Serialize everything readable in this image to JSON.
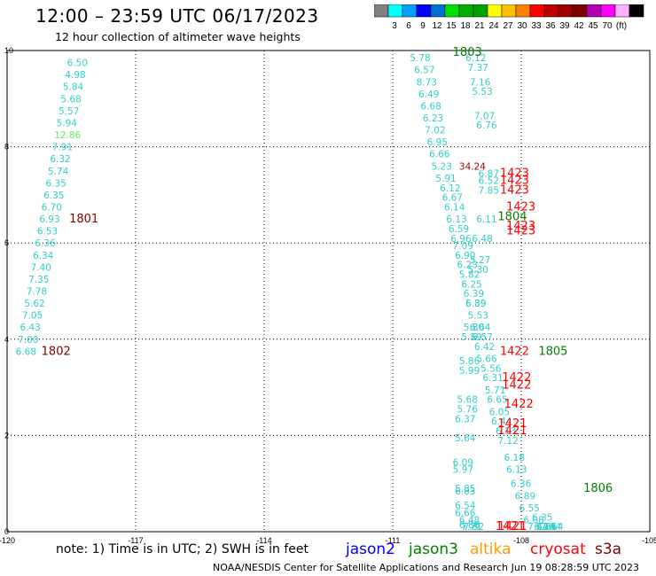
{
  "header": {
    "title": "12:00 – 23:59 UTC 06/17/2023",
    "subtitle": "12 hour collection of altimeter wave heights"
  },
  "colorbar": {
    "colors": [
      "#808080",
      "#00ffff",
      "#00a0ff",
      "#0000ff",
      "#0070d0",
      "#00e000",
      "#00b000",
      "#00a000",
      "#ffff00",
      "#ffc000",
      "#ff8000",
      "#ff0000",
      "#c00000",
      "#a00000",
      "#800000",
      "#b000b0",
      "#ff00ff",
      "#ffb0ff",
      "#000000"
    ],
    "labels": [
      "3",
      "6",
      "9",
      "12",
      "15",
      "18",
      "21",
      "24",
      "27",
      "30",
      "33",
      "36",
      "39",
      "42",
      "45",
      "70",
      "(ft)"
    ]
  },
  "note": "note: 1) Time is in UTC; 2) SWH is in feet",
  "legend": [
    {
      "name": "jason2",
      "color": "#0000ff"
    },
    {
      "name": "jason3",
      "color": "#008000"
    },
    {
      "name": "altika",
      "color": "#ff9900"
    },
    {
      "name": "cryosat",
      "color": "#ff0000"
    },
    {
      "name": "s3a",
      "color": "#800000"
    }
  ],
  "footer": "NOAA/NESDIS Center for Satellite Applications and Research   Jun 19 08:28:59 UTC 2023",
  "chart_data": {
    "type": "scatter",
    "title": "12:00 – 23:59 UTC 06/17/2023",
    "xlim": [
      -120,
      -105
    ],
    "ylim": [
      0,
      10
    ],
    "x_ticks": [
      "-120",
      "-117",
      "-114",
      "-111",
      "-108",
      "-105"
    ],
    "y_ticks": [
      "0",
      "2",
      "4",
      "6",
      "8",
      "10"
    ],
    "grid": true,
    "series": [
      {
        "name": "swh",
        "labels": [
          {
            "text": "6.50",
            "x": -118.6,
            "y": 9.75,
            "color": "#33cccc"
          },
          {
            "text": "4.98",
            "x": -118.65,
            "y": 9.5,
            "color": "#33cccc"
          },
          {
            "text": "5.84",
            "x": -118.7,
            "y": 9.25,
            "color": "#33cccc"
          },
          {
            "text": "5.68",
            "x": -118.75,
            "y": 9.0,
            "color": "#33cccc"
          },
          {
            "text": "5.57",
            "x": -118.8,
            "y": 8.75,
            "color": "#33cccc"
          },
          {
            "text": "5.94",
            "x": -118.85,
            "y": 8.5,
            "color": "#33cccc"
          },
          {
            "text": "12.86",
            "x": -118.9,
            "y": 8.25,
            "color": "#66ee66"
          },
          {
            "text": "7.91",
            "x": -118.95,
            "y": 8.0,
            "color": "#33cccc"
          },
          {
            "text": "6.32",
            "x": -119.0,
            "y": 7.75,
            "color": "#33cccc"
          },
          {
            "text": "5.74",
            "x": -119.05,
            "y": 7.5,
            "color": "#33cccc"
          },
          {
            "text": "6.35",
            "x": -119.1,
            "y": 7.25,
            "color": "#33cccc"
          },
          {
            "text": "6.35",
            "x": -119.15,
            "y": 7.0,
            "color": "#33cccc"
          },
          {
            "text": "6.70",
            "x": -119.2,
            "y": 6.75,
            "color": "#33cccc"
          },
          {
            "text": "6.93",
            "x": -119.25,
            "y": 6.5,
            "color": "#33cccc"
          },
          {
            "text": "6.53",
            "x": -119.3,
            "y": 6.25,
            "color": "#33cccc"
          },
          {
            "text": "6.36",
            "x": -119.35,
            "y": 6.0,
            "color": "#33cccc"
          },
          {
            "text": "6.34",
            "x": -119.4,
            "y": 5.75,
            "color": "#33cccc"
          },
          {
            "text": "7.40",
            "x": -119.45,
            "y": 5.5,
            "color": "#33cccc"
          },
          {
            "text": "7.35",
            "x": -119.5,
            "y": 5.25,
            "color": "#33cccc"
          },
          {
            "text": "7.78",
            "x": -119.55,
            "y": 5.0,
            "color": "#33cccc"
          },
          {
            "text": "5.62",
            "x": -119.6,
            "y": 4.75,
            "color": "#33cccc"
          },
          {
            "text": "7.05",
            "x": -119.65,
            "y": 4.5,
            "color": "#33cccc"
          },
          {
            "text": "6.43",
            "x": -119.7,
            "y": 4.25,
            "color": "#33cccc"
          },
          {
            "text": "7.00",
            "x": -119.75,
            "y": 4.0,
            "color": "#33cccc"
          },
          {
            "text": "6.68",
            "x": -119.8,
            "y": 3.75,
            "color": "#33cccc"
          },
          {
            "text": "1801",
            "x": -118.55,
            "y": 6.5,
            "color": "#800000"
          },
          {
            "text": "1802",
            "x": -119.2,
            "y": 3.75,
            "color": "#800000"
          },
          {
            "text": "5.78",
            "x": -110.6,
            "y": 9.85,
            "color": "#33cccc"
          },
          {
            "text": "6.57",
            "x": -110.5,
            "y": 9.6,
            "color": "#33cccc"
          },
          {
            "text": "8.73",
            "x": -110.45,
            "y": 9.35,
            "color": "#33cccc"
          },
          {
            "text": "6.49",
            "x": -110.4,
            "y": 9.1,
            "color": "#33cccc"
          },
          {
            "text": "6.68",
            "x": -110.35,
            "y": 8.85,
            "color": "#33cccc"
          },
          {
            "text": "6.23",
            "x": -110.3,
            "y": 8.6,
            "color": "#33cccc"
          },
          {
            "text": "7.02",
            "x": -110.25,
            "y": 8.35,
            "color": "#33cccc"
          },
          {
            "text": "6.95",
            "x": -110.2,
            "y": 8.1,
            "color": "#33cccc"
          },
          {
            "text": "6.66",
            "x": -110.15,
            "y": 7.85,
            "color": "#33cccc"
          },
          {
            "text": "5.23",
            "x": -110.1,
            "y": 7.6,
            "color": "#33cccc"
          },
          {
            "text": "5.91",
            "x": -110.0,
            "y": 7.35,
            "color": "#33cccc"
          },
          {
            "text": "6.12",
            "x": -109.9,
            "y": 7.15,
            "color": "#33cccc"
          },
          {
            "text": "6.67",
            "x": -109.85,
            "y": 6.95,
            "color": "#33cccc"
          },
          {
            "text": "6.14",
            "x": -109.8,
            "y": 6.75,
            "color": "#33cccc"
          },
          {
            "text": "6.13",
            "x": -109.75,
            "y": 6.5,
            "color": "#33cccc"
          },
          {
            "text": "6.59",
            "x": -109.7,
            "y": 6.3,
            "color": "#33cccc"
          },
          {
            "text": "6.96",
            "x": -109.65,
            "y": 6.1,
            "color": "#33cccc"
          },
          {
            "text": "7.09",
            "x": -109.6,
            "y": 5.95,
            "color": "#33cccc"
          },
          {
            "text": "6.90",
            "x": -109.55,
            "y": 5.75,
            "color": "#33cccc"
          },
          {
            "text": "6.23",
            "x": -109.5,
            "y": 5.55,
            "color": "#33cccc"
          },
          {
            "text": "5.82",
            "x": -109.45,
            "y": 5.35,
            "color": "#33cccc"
          },
          {
            "text": "6.25",
            "x": -109.4,
            "y": 5.15,
            "color": "#33cccc"
          },
          {
            "text": "6.39",
            "x": -109.35,
            "y": 4.95,
            "color": "#33cccc"
          },
          {
            "text": "6.89",
            "x": -109.3,
            "y": 4.75,
            "color": "#33cccc"
          },
          {
            "text": "5.53",
            "x": -109.25,
            "y": 4.5,
            "color": "#33cccc"
          },
          {
            "text": "6.64",
            "x": -109.2,
            "y": 4.25,
            "color": "#33cccc"
          },
          {
            "text": "6.57",
            "x": -109.15,
            "y": 4.05,
            "color": "#33cccc"
          },
          {
            "text": "6.42",
            "x": -109.1,
            "y": 3.85,
            "color": "#33cccc"
          },
          {
            "text": "5.66",
            "x": -109.05,
            "y": 3.6,
            "color": "#33cccc"
          },
          {
            "text": "5.56",
            "x": -108.95,
            "y": 3.4,
            "color": "#33cccc"
          },
          {
            "text": "6.31",
            "x": -108.9,
            "y": 3.2,
            "color": "#33cccc"
          },
          {
            "text": "5.71",
            "x": -108.85,
            "y": 2.95,
            "color": "#33cccc"
          },
          {
            "text": "6.65",
            "x": -108.8,
            "y": 2.75,
            "color": "#33cccc"
          },
          {
            "text": "6.05",
            "x": -108.75,
            "y": 2.5,
            "color": "#33cccc"
          },
          {
            "text": "6.44",
            "x": -108.7,
            "y": 2.3,
            "color": "#33cccc"
          },
          {
            "text": "6.13",
            "x": -108.6,
            "y": 2.1,
            "color": "#33cccc"
          },
          {
            "text": "7.12",
            "x": -108.55,
            "y": 1.9,
            "color": "#33cccc"
          },
          {
            "text": "6.18",
            "x": -108.4,
            "y": 1.55,
            "color": "#33cccc"
          },
          {
            "text": "6.13",
            "x": -108.35,
            "y": 1.3,
            "color": "#33cccc"
          },
          {
            "text": "6.36",
            "x": -108.25,
            "y": 1.0,
            "color": "#33cccc"
          },
          {
            "text": "6.89",
            "x": -108.15,
            "y": 0.75,
            "color": "#33cccc"
          },
          {
            "text": "6.55",
            "x": -108.05,
            "y": 0.5,
            "color": "#33cccc"
          },
          {
            "text": "6.08",
            "x": -107.95,
            "y": 0.25,
            "color": "#33cccc"
          },
          {
            "text": "7.44",
            "x": -107.85,
            "y": 0.0,
            "color": "#33cccc"
          },
          {
            "text": "6.12",
            "x": -109.3,
            "y": 9.85,
            "color": "#33cccc"
          },
          {
            "text": "7.37",
            "x": -109.25,
            "y": 9.65,
            "color": "#33cccc"
          },
          {
            "text": "7.16",
            "x": -109.2,
            "y": 9.35,
            "color": "#33cccc"
          },
          {
            "text": "5.53",
            "x": -109.15,
            "y": 9.15,
            "color": "#33cccc"
          },
          {
            "text": "7.07",
            "x": -109.1,
            "y": 8.65,
            "color": "#33cccc"
          },
          {
            "text": "6.76",
            "x": -109.05,
            "y": 8.45,
            "color": "#33cccc"
          },
          {
            "text": "6.87",
            "x": -109.0,
            "y": 7.45,
            "color": "#33cccc"
          },
          {
            "text": "6.52",
            "x": -109.0,
            "y": 7.3,
            "color": "#33cccc"
          },
          {
            "text": "7.85",
            "x": -109.0,
            "y": 7.1,
            "color": "#33cccc"
          },
          {
            "text": "6.11",
            "x": -109.05,
            "y": 6.5,
            "color": "#33cccc"
          },
          {
            "text": "6.48",
            "x": -109.15,
            "y": 6.1,
            "color": "#33cccc"
          },
          {
            "text": "5.27",
            "x": -109.2,
            "y": 5.65,
            "color": "#33cccc"
          },
          {
            "text": "5.30",
            "x": -109.25,
            "y": 5.45,
            "color": "#33cccc"
          },
          {
            "text": "5.39",
            "x": -109.3,
            "y": 4.75,
            "color": "#33cccc"
          },
          {
            "text": "5.80",
            "x": -109.35,
            "y": 4.25,
            "color": "#33cccc"
          },
          {
            "text": "5.59",
            "x": -109.4,
            "y": 4.05,
            "color": "#33cccc"
          },
          {
            "text": "5.86",
            "x": -109.45,
            "y": 3.55,
            "color": "#33cccc"
          },
          {
            "text": "5.99",
            "x": -109.45,
            "y": 3.35,
            "color": "#33cccc"
          },
          {
            "text": "5.68",
            "x": -109.5,
            "y": 2.75,
            "color": "#33cccc"
          },
          {
            "text": "5.76",
            "x": -109.5,
            "y": 2.55,
            "color": "#33cccc"
          },
          {
            "text": "6.37",
            "x": -109.55,
            "y": 2.35,
            "color": "#33cccc"
          },
          {
            "text": "5.64",
            "x": -109.55,
            "y": 1.95,
            "color": "#33cccc"
          },
          {
            "text": "6.09",
            "x": -109.6,
            "y": 1.45,
            "color": "#33cccc"
          },
          {
            "text": "5.97",
            "x": -109.6,
            "y": 1.3,
            "color": "#33cccc"
          },
          {
            "text": "5.85",
            "x": -109.55,
            "y": 0.9,
            "color": "#33cccc"
          },
          {
            "text": "6.83",
            "x": -109.55,
            "y": 0.85,
            "color": "#33cccc"
          },
          {
            "text": "6.54",
            "x": -109.55,
            "y": 0.55,
            "color": "#33cccc"
          },
          {
            "text": "6.66",
            "x": -109.55,
            "y": 0.4,
            "color": "#33cccc"
          },
          {
            "text": "6.48",
            "x": -109.45,
            "y": 0.25,
            "color": "#33cccc"
          },
          {
            "text": "6.86",
            "x": -109.45,
            "y": 0.15,
            "color": "#33cccc"
          },
          {
            "text": "7.71",
            "x": -109.4,
            "y": 0.0,
            "color": "#33cccc"
          },
          {
            "text": "7.32",
            "x": -109.35,
            "y": -0.25,
            "color": "#33cccc"
          },
          {
            "text": "6.35",
            "x": -107.75,
            "y": 0.3,
            "color": "#33cccc"
          },
          {
            "text": "6.36",
            "x": -107.65,
            "y": 0.05,
            "color": "#33cccc"
          },
          {
            "text": "7.44",
            "x": -107.55,
            "y": -0.2,
            "color": "#33cccc"
          },
          {
            "text": "7.14",
            "x": -107.5,
            "y": -0.45,
            "color": "#33cccc"
          },
          {
            "text": "6.36",
            "x": -107.7,
            "y": -0.1,
            "color": "#33cccc"
          },
          {
            "text": "34.24",
            "x": -109.45,
            "y": 7.6,
            "color": "#a00000"
          },
          {
            "text": "1803",
            "x": -109.6,
            "y": 10.0,
            "color": "#008000"
          },
          {
            "text": "1804",
            "x": -108.55,
            "y": 6.55,
            "color": "#008000"
          },
          {
            "text": "1805",
            "x": -107.6,
            "y": 3.75,
            "color": "#008000"
          },
          {
            "text": "1806",
            "x": -106.55,
            "y": 0.9,
            "color": "#008000"
          },
          {
            "text": "1423",
            "x": -108.5,
            "y": 7.45,
            "color": "#ff0000"
          },
          {
            "text": "1423",
            "x": -108.5,
            "y": 7.3,
            "color": "#ff0000"
          },
          {
            "text": "1423",
            "x": -108.5,
            "y": 7.1,
            "color": "#ff0000"
          },
          {
            "text": "1423",
            "x": -108.35,
            "y": 6.75,
            "color": "#ff0000"
          },
          {
            "text": "1423",
            "x": -108.35,
            "y": 6.35,
            "color": "#ff0000"
          },
          {
            "text": "1423",
            "x": -108.35,
            "y": 6.25,
            "color": "#ff0000"
          },
          {
            "text": "1422",
            "x": -108.5,
            "y": 3.75,
            "color": "#ff0000"
          },
          {
            "text": "1422",
            "x": -108.45,
            "y": 3.2,
            "color": "#ff0000"
          },
          {
            "text": "1422",
            "x": -108.45,
            "y": 3.05,
            "color": "#ff0000"
          },
          {
            "text": "1422",
            "x": -108.4,
            "y": 2.65,
            "color": "#ff0000"
          },
          {
            "text": "1421",
            "x": -108.55,
            "y": 2.25,
            "color": "#ff0000"
          },
          {
            "text": "1421",
            "x": -108.55,
            "y": 2.1,
            "color": "#ff0000"
          },
          {
            "text": "1421",
            "x": -108.6,
            "y": 0.0,
            "color": "#ff0000"
          },
          {
            "text": "1421",
            "x": -108.55,
            "y": -0.25,
            "color": "#ff0000"
          }
        ]
      }
    ]
  }
}
